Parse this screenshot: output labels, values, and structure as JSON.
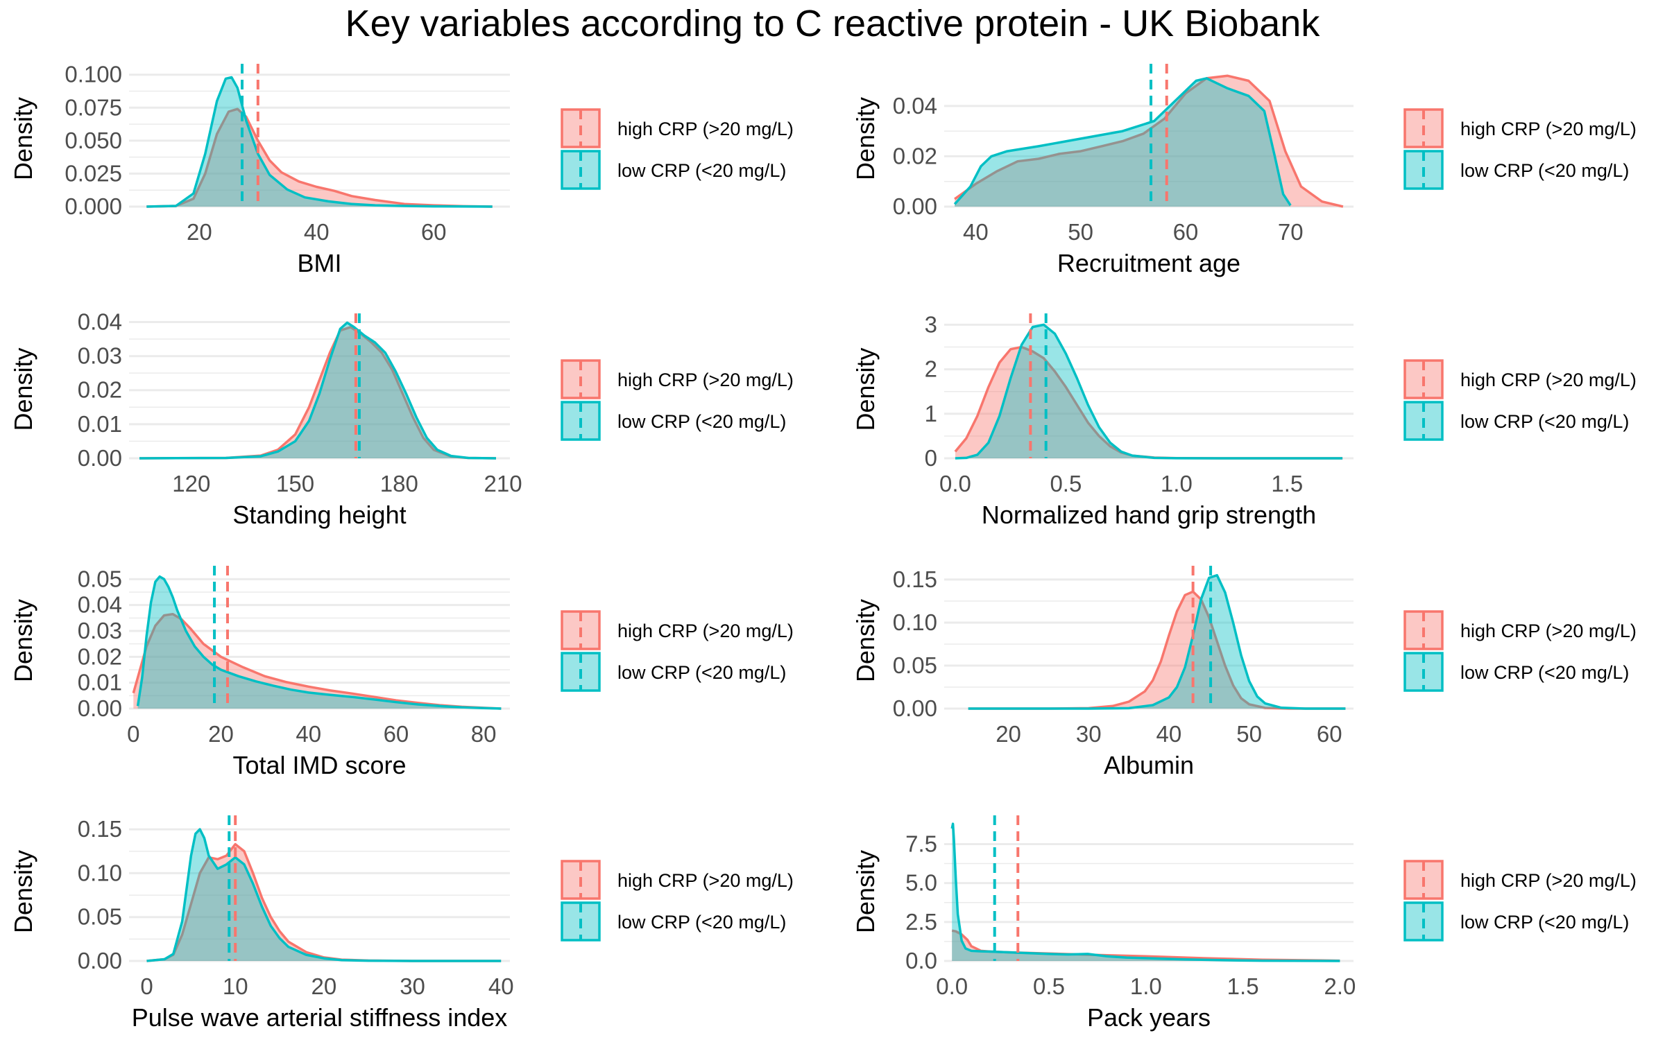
{
  "title": "Key variables according to C reactive protein - UK Biobank",
  "colors": {
    "high": "#F8766D",
    "low": "#00BFC4",
    "grid": "#EBEBEB"
  },
  "legend": [
    "high CRP (>20 mg/L)",
    "low CRP (<20 mg/L)"
  ],
  "chart_data": [
    {
      "type": "area",
      "xlabel": "BMI",
      "ylabel": "Density",
      "xlim": [
        8,
        73
      ],
      "ylim": [
        0,
        0.103
      ],
      "xticks": [
        20,
        40,
        60
      ],
      "xtick_labels": [
        "20",
        "40",
        "60"
      ],
      "yticks": [
        0,
        0.025,
        0.05,
        0.075,
        0.1
      ],
      "ytick_labels": [
        "0.000",
        "0.025",
        "0.050",
        "0.075",
        "0.100"
      ],
      "series": [
        {
          "name": "high CRP (>20 mg/L)",
          "mean": 30.0,
          "x": [
            11,
            16,
            19,
            21,
            23,
            25,
            26.5,
            28,
            30,
            32,
            34,
            37,
            40,
            43,
            46,
            50,
            55,
            60,
            65,
            70
          ],
          "y": [
            0,
            0.0005,
            0.006,
            0.025,
            0.055,
            0.072,
            0.074,
            0.068,
            0.05,
            0.035,
            0.026,
            0.019,
            0.015,
            0.012,
            0.008,
            0.005,
            0.002,
            0.001,
            0.0003,
            0
          ]
        },
        {
          "name": "low CRP (<20 mg/L)",
          "mean": 27.3,
          "x": [
            11,
            16,
            19,
            21,
            23,
            24.5,
            25.5,
            26.5,
            28,
            30,
            32,
            35,
            38,
            42,
            46,
            50,
            55,
            60,
            70
          ],
          "y": [
            0,
            0.0005,
            0.01,
            0.04,
            0.08,
            0.097,
            0.098,
            0.09,
            0.065,
            0.04,
            0.024,
            0.013,
            0.007,
            0.004,
            0.002,
            0.001,
            0.0005,
            0.0002,
            0
          ]
        }
      ]
    },
    {
      "type": "area",
      "xlabel": "Recruitment age",
      "ylabel": "Density",
      "xlim": [
        37,
        76
      ],
      "ylim": [
        0,
        0.054
      ],
      "xticks": [
        40,
        50,
        60,
        70
      ],
      "xtick_labels": [
        "40",
        "50",
        "60",
        "70"
      ],
      "yticks": [
        0,
        0.02,
        0.04
      ],
      "ytick_labels": [
        "0.00",
        "0.02",
        "0.04"
      ],
      "series": [
        {
          "name": "high CRP (>20 mg/L)",
          "mean": 58.2,
          "x": [
            38,
            40,
            42,
            44,
            46,
            48,
            50,
            52,
            54,
            56,
            58,
            60,
            62,
            64,
            66,
            68,
            69.5,
            71,
            73,
            75
          ],
          "y": [
            0.003,
            0.009,
            0.014,
            0.018,
            0.019,
            0.021,
            0.022,
            0.024,
            0.026,
            0.029,
            0.035,
            0.045,
            0.051,
            0.052,
            0.05,
            0.042,
            0.022,
            0.008,
            0.002,
            0
          ]
        },
        {
          "name": "low CRP (<20 mg/L)",
          "mean": 56.7,
          "x": [
            38,
            39.5,
            40.5,
            41.5,
            43,
            46,
            50,
            54,
            57,
            59,
            61,
            62,
            64,
            66,
            67.5,
            68.5,
            69.3,
            70
          ],
          "y": [
            0.001,
            0.008,
            0.016,
            0.02,
            0.022,
            0.024,
            0.027,
            0.03,
            0.034,
            0.042,
            0.05,
            0.051,
            0.047,
            0.044,
            0.038,
            0.02,
            0.005,
            0.0005
          ]
        }
      ]
    },
    {
      "type": "area",
      "xlabel": "Standing height",
      "ylabel": "Density",
      "xlim": [
        102,
        212
      ],
      "ylim": [
        0,
        0.0405
      ],
      "xticks": [
        120,
        150,
        180,
        210
      ],
      "xtick_labels": [
        "120",
        "150",
        "180",
        "210"
      ],
      "yticks": [
        0,
        0.01,
        0.02,
        0.03,
        0.04
      ],
      "ytick_labels": [
        "0.00",
        "0.01",
        "0.02",
        "0.03",
        "0.04"
      ],
      "series": [
        {
          "name": "high CRP (>20 mg/L)",
          "mean": 167.5,
          "x": [
            105,
            130,
            140,
            145,
            150,
            154,
            157,
            160,
            163,
            166,
            169,
            172,
            175,
            178,
            181,
            184,
            187,
            190,
            195,
            200,
            208
          ],
          "y": [
            0,
            0.0001,
            0.0008,
            0.0025,
            0.007,
            0.015,
            0.023,
            0.031,
            0.0375,
            0.0385,
            0.0365,
            0.034,
            0.031,
            0.026,
            0.019,
            0.012,
            0.006,
            0.0025,
            0.0005,
            0.0001,
            0
          ]
        },
        {
          "name": "low CRP (<20 mg/L)",
          "mean": 168.5,
          "x": [
            105,
            130,
            140,
            145,
            150,
            154,
            157,
            160,
            163,
            165,
            167,
            170,
            173,
            176,
            179,
            182,
            185,
            188,
            191,
            195,
            200,
            208
          ],
          "y": [
            0,
            0.0001,
            0.0006,
            0.002,
            0.005,
            0.011,
            0.019,
            0.029,
            0.038,
            0.0398,
            0.0385,
            0.036,
            0.034,
            0.031,
            0.0255,
            0.019,
            0.012,
            0.006,
            0.0025,
            0.0007,
            0.0001,
            0
          ]
        }
      ]
    },
    {
      "type": "area",
      "xlabel": "Normalized hand grip strength",
      "ylabel": "Density",
      "xlim": [
        -0.05,
        1.8
      ],
      "ylim": [
        0,
        3.1
      ],
      "xticks": [
        0,
        0.5,
        1,
        1.5
      ],
      "xtick_labels": [
        "0.0",
        "0.5",
        "1.0",
        "1.5"
      ],
      "yticks": [
        0,
        1,
        2,
        3
      ],
      "ytick_labels": [
        "0",
        "1",
        "2",
        "3"
      ],
      "series": [
        {
          "name": "high CRP (>20 mg/L)",
          "mean": 0.34,
          "x": [
            0,
            0.05,
            0.1,
            0.15,
            0.2,
            0.25,
            0.3,
            0.35,
            0.4,
            0.45,
            0.5,
            0.55,
            0.6,
            0.65,
            0.7,
            0.75,
            0.8,
            0.9,
            1.0,
            1.2,
            1.5,
            1.75
          ],
          "y": [
            0.15,
            0.45,
            0.95,
            1.6,
            2.15,
            2.45,
            2.5,
            2.4,
            2.25,
            1.95,
            1.6,
            1.2,
            0.8,
            0.5,
            0.27,
            0.13,
            0.06,
            0.015,
            0.003,
            0,
            0,
            0
          ]
        },
        {
          "name": "low CRP (<20 mg/L)",
          "mean": 0.41,
          "x": [
            0,
            0.05,
            0.1,
            0.15,
            0.2,
            0.25,
            0.3,
            0.35,
            0.4,
            0.45,
            0.5,
            0.55,
            0.6,
            0.65,
            0.7,
            0.75,
            0.8,
            0.9,
            1.0,
            1.2,
            1.5,
            1.75
          ],
          "y": [
            0,
            0.01,
            0.08,
            0.35,
            0.95,
            1.8,
            2.55,
            2.95,
            3.0,
            2.8,
            2.35,
            1.8,
            1.2,
            0.7,
            0.35,
            0.15,
            0.06,
            0.01,
            0.002,
            0,
            0,
            0
          ]
        }
      ]
    },
    {
      "type": "area",
      "xlabel": "Total IMD score",
      "ylabel": "Density",
      "xlim": [
        -1,
        86
      ],
      "ylim": [
        0,
        0.0525
      ],
      "xticks": [
        0,
        20,
        40,
        60,
        80
      ],
      "xtick_labels": [
        "0",
        "20",
        "40",
        "60",
        "80"
      ],
      "yticks": [
        0,
        0.01,
        0.02,
        0.03,
        0.04,
        0.05
      ],
      "ytick_labels": [
        "0.00",
        "0.01",
        "0.02",
        "0.03",
        "0.04",
        "0.05"
      ],
      "series": [
        {
          "name": "high CRP (>20 mg/L)",
          "mean": 21.5,
          "x": [
            0,
            1,
            3,
            5,
            7,
            9,
            11,
            13,
            16,
            20,
            25,
            30,
            35,
            40,
            45,
            50,
            55,
            60,
            65,
            70,
            75,
            80,
            84
          ],
          "y": [
            0.006,
            0.012,
            0.024,
            0.032,
            0.036,
            0.0365,
            0.0345,
            0.031,
            0.025,
            0.02,
            0.016,
            0.0125,
            0.0102,
            0.0085,
            0.007,
            0.0058,
            0.0045,
            0.0032,
            0.0022,
            0.0013,
            0.0007,
            0.0003,
            0
          ]
        },
        {
          "name": "low CRP (<20 mg/L)",
          "mean": 18.5,
          "x": [
            1,
            2,
            3,
            4,
            5,
            6,
            7,
            8,
            9,
            10,
            12,
            14,
            16,
            18,
            20,
            24,
            28,
            32,
            36,
            40,
            45,
            50,
            55,
            60,
            65,
            70,
            75,
            80,
            84
          ],
          "y": [
            0.001,
            0.012,
            0.028,
            0.041,
            0.049,
            0.051,
            0.05,
            0.047,
            0.043,
            0.038,
            0.03,
            0.024,
            0.02,
            0.017,
            0.015,
            0.0125,
            0.0105,
            0.0088,
            0.0073,
            0.0062,
            0.0053,
            0.0045,
            0.0035,
            0.0025,
            0.0016,
            0.001,
            0.0005,
            0.0002,
            0
          ]
        }
      ]
    },
    {
      "type": "area",
      "xlabel": "Albumin",
      "ylabel": "Density",
      "xlim": [
        12,
        63
      ],
      "ylim": [
        0,
        0.158
      ],
      "xticks": [
        20,
        30,
        40,
        50,
        60
      ],
      "xtick_labels": [
        "20",
        "30",
        "40",
        "50",
        "60"
      ],
      "yticks": [
        0,
        0.05,
        0.1,
        0.15
      ],
      "ytick_labels": [
        "0.00",
        "0.05",
        "0.10",
        "0.15"
      ],
      "series": [
        {
          "name": "high CRP (>20 mg/L)",
          "mean": 43.0,
          "x": [
            15,
            25,
            30,
            33,
            35,
            37,
            38,
            39,
            40,
            41,
            42,
            43,
            44,
            45,
            46,
            47,
            48,
            49,
            50,
            52,
            55,
            62
          ],
          "y": [
            0,
            0,
            0.0005,
            0.003,
            0.008,
            0.02,
            0.033,
            0.055,
            0.085,
            0.113,
            0.132,
            0.136,
            0.127,
            0.106,
            0.078,
            0.05,
            0.027,
            0.012,
            0.005,
            0.0008,
            0,
            0
          ]
        },
        {
          "name": "low CRP (<20 mg/L)",
          "mean": 45.2,
          "x": [
            15,
            25,
            30,
            35,
            38,
            40,
            41,
            42,
            43,
            44,
            45,
            46,
            47,
            48,
            49,
            50,
            51,
            52,
            54,
            57,
            62
          ],
          "y": [
            0,
            0,
            0,
            0.0005,
            0.004,
            0.013,
            0.025,
            0.048,
            0.085,
            0.127,
            0.152,
            0.155,
            0.135,
            0.1,
            0.062,
            0.032,
            0.014,
            0.006,
            0.001,
            0,
            0
          ]
        }
      ]
    },
    {
      "type": "area",
      "xlabel": "Pulse wave arterial stiffness index",
      "ylabel": "Density",
      "xlim": [
        -2,
        41
      ],
      "ylim": [
        0,
        0.158
      ],
      "xticks": [
        0,
        10,
        20,
        30,
        40
      ],
      "xtick_labels": [
        "0",
        "10",
        "20",
        "30",
        "40"
      ],
      "yticks": [
        0,
        0.05,
        0.1,
        0.15
      ],
      "ytick_labels": [
        "0.00",
        "0.05",
        "0.10",
        "0.15"
      ],
      "series": [
        {
          "name": "high CRP (>20 mg/L)",
          "mean": 10.0,
          "x": [
            0,
            2,
            3,
            4,
            5,
            6,
            7,
            8,
            9,
            10,
            11,
            12,
            13,
            14,
            15,
            16,
            18,
            20,
            22,
            25,
            30,
            40
          ],
          "y": [
            0,
            0.002,
            0.007,
            0.03,
            0.065,
            0.1,
            0.118,
            0.116,
            0.12,
            0.133,
            0.125,
            0.1,
            0.072,
            0.05,
            0.034,
            0.022,
            0.01,
            0.004,
            0.0015,
            0.0005,
            0,
            0
          ]
        },
        {
          "name": "low CRP (<20 mg/L)",
          "mean": 9.3,
          "x": [
            0,
            2,
            3,
            4,
            5,
            5.5,
            6,
            6.5,
            7,
            8,
            9,
            10,
            11,
            12,
            13,
            14,
            15,
            16,
            18,
            20,
            22,
            25,
            30,
            40
          ],
          "y": [
            0,
            0.002,
            0.008,
            0.045,
            0.12,
            0.145,
            0.15,
            0.14,
            0.12,
            0.105,
            0.11,
            0.118,
            0.11,
            0.088,
            0.062,
            0.04,
            0.026,
            0.016,
            0.007,
            0.003,
            0.001,
            0.0003,
            0,
            0
          ]
        }
      ]
    },
    {
      "type": "area",
      "xlabel": "Pack years",
      "ylabel": "Density",
      "xlim": [
        -0.04,
        2.07
      ],
      "ylim": [
        0,
        8.9
      ],
      "xticks": [
        0,
        0.5,
        1,
        1.5,
        2
      ],
      "xtick_labels": [
        "0.0",
        "0.5",
        "1.0",
        "1.5",
        "2.0"
      ],
      "yticks": [
        0,
        2.5,
        5,
        7.5
      ],
      "ytick_labels": [
        "0.0",
        "2.5",
        "5.0",
        "7.5"
      ],
      "series": [
        {
          "name": "high CRP (>20 mg/L)",
          "mean": 0.34,
          "x": [
            0,
            0.02,
            0.05,
            0.08,
            0.1,
            0.15,
            0.2,
            0.3,
            0.5,
            0.7,
            1.0,
            1.3,
            1.6,
            2.0
          ],
          "y": [
            1.95,
            1.9,
            1.7,
            1.35,
            0.95,
            0.65,
            0.6,
            0.55,
            0.48,
            0.4,
            0.3,
            0.18,
            0.08,
            0.02
          ]
        },
        {
          "name": "low CRP (<20 mg/L)",
          "mean": 0.22,
          "x": [
            0,
            0.005,
            0.01,
            0.02,
            0.03,
            0.05,
            0.07,
            0.1,
            0.15,
            0.2,
            0.3,
            0.4,
            0.5,
            0.6,
            0.7,
            0.8,
            0.9,
            1.0,
            1.2,
            1.4,
            1.6,
            2.0
          ],
          "y": [
            8.5,
            8.8,
            7.8,
            5.2,
            3.0,
            1.3,
            0.8,
            0.65,
            0.62,
            0.6,
            0.55,
            0.5,
            0.45,
            0.42,
            0.45,
            0.3,
            0.22,
            0.18,
            0.1,
            0.05,
            0.02,
            0
          ]
        }
      ]
    }
  ]
}
